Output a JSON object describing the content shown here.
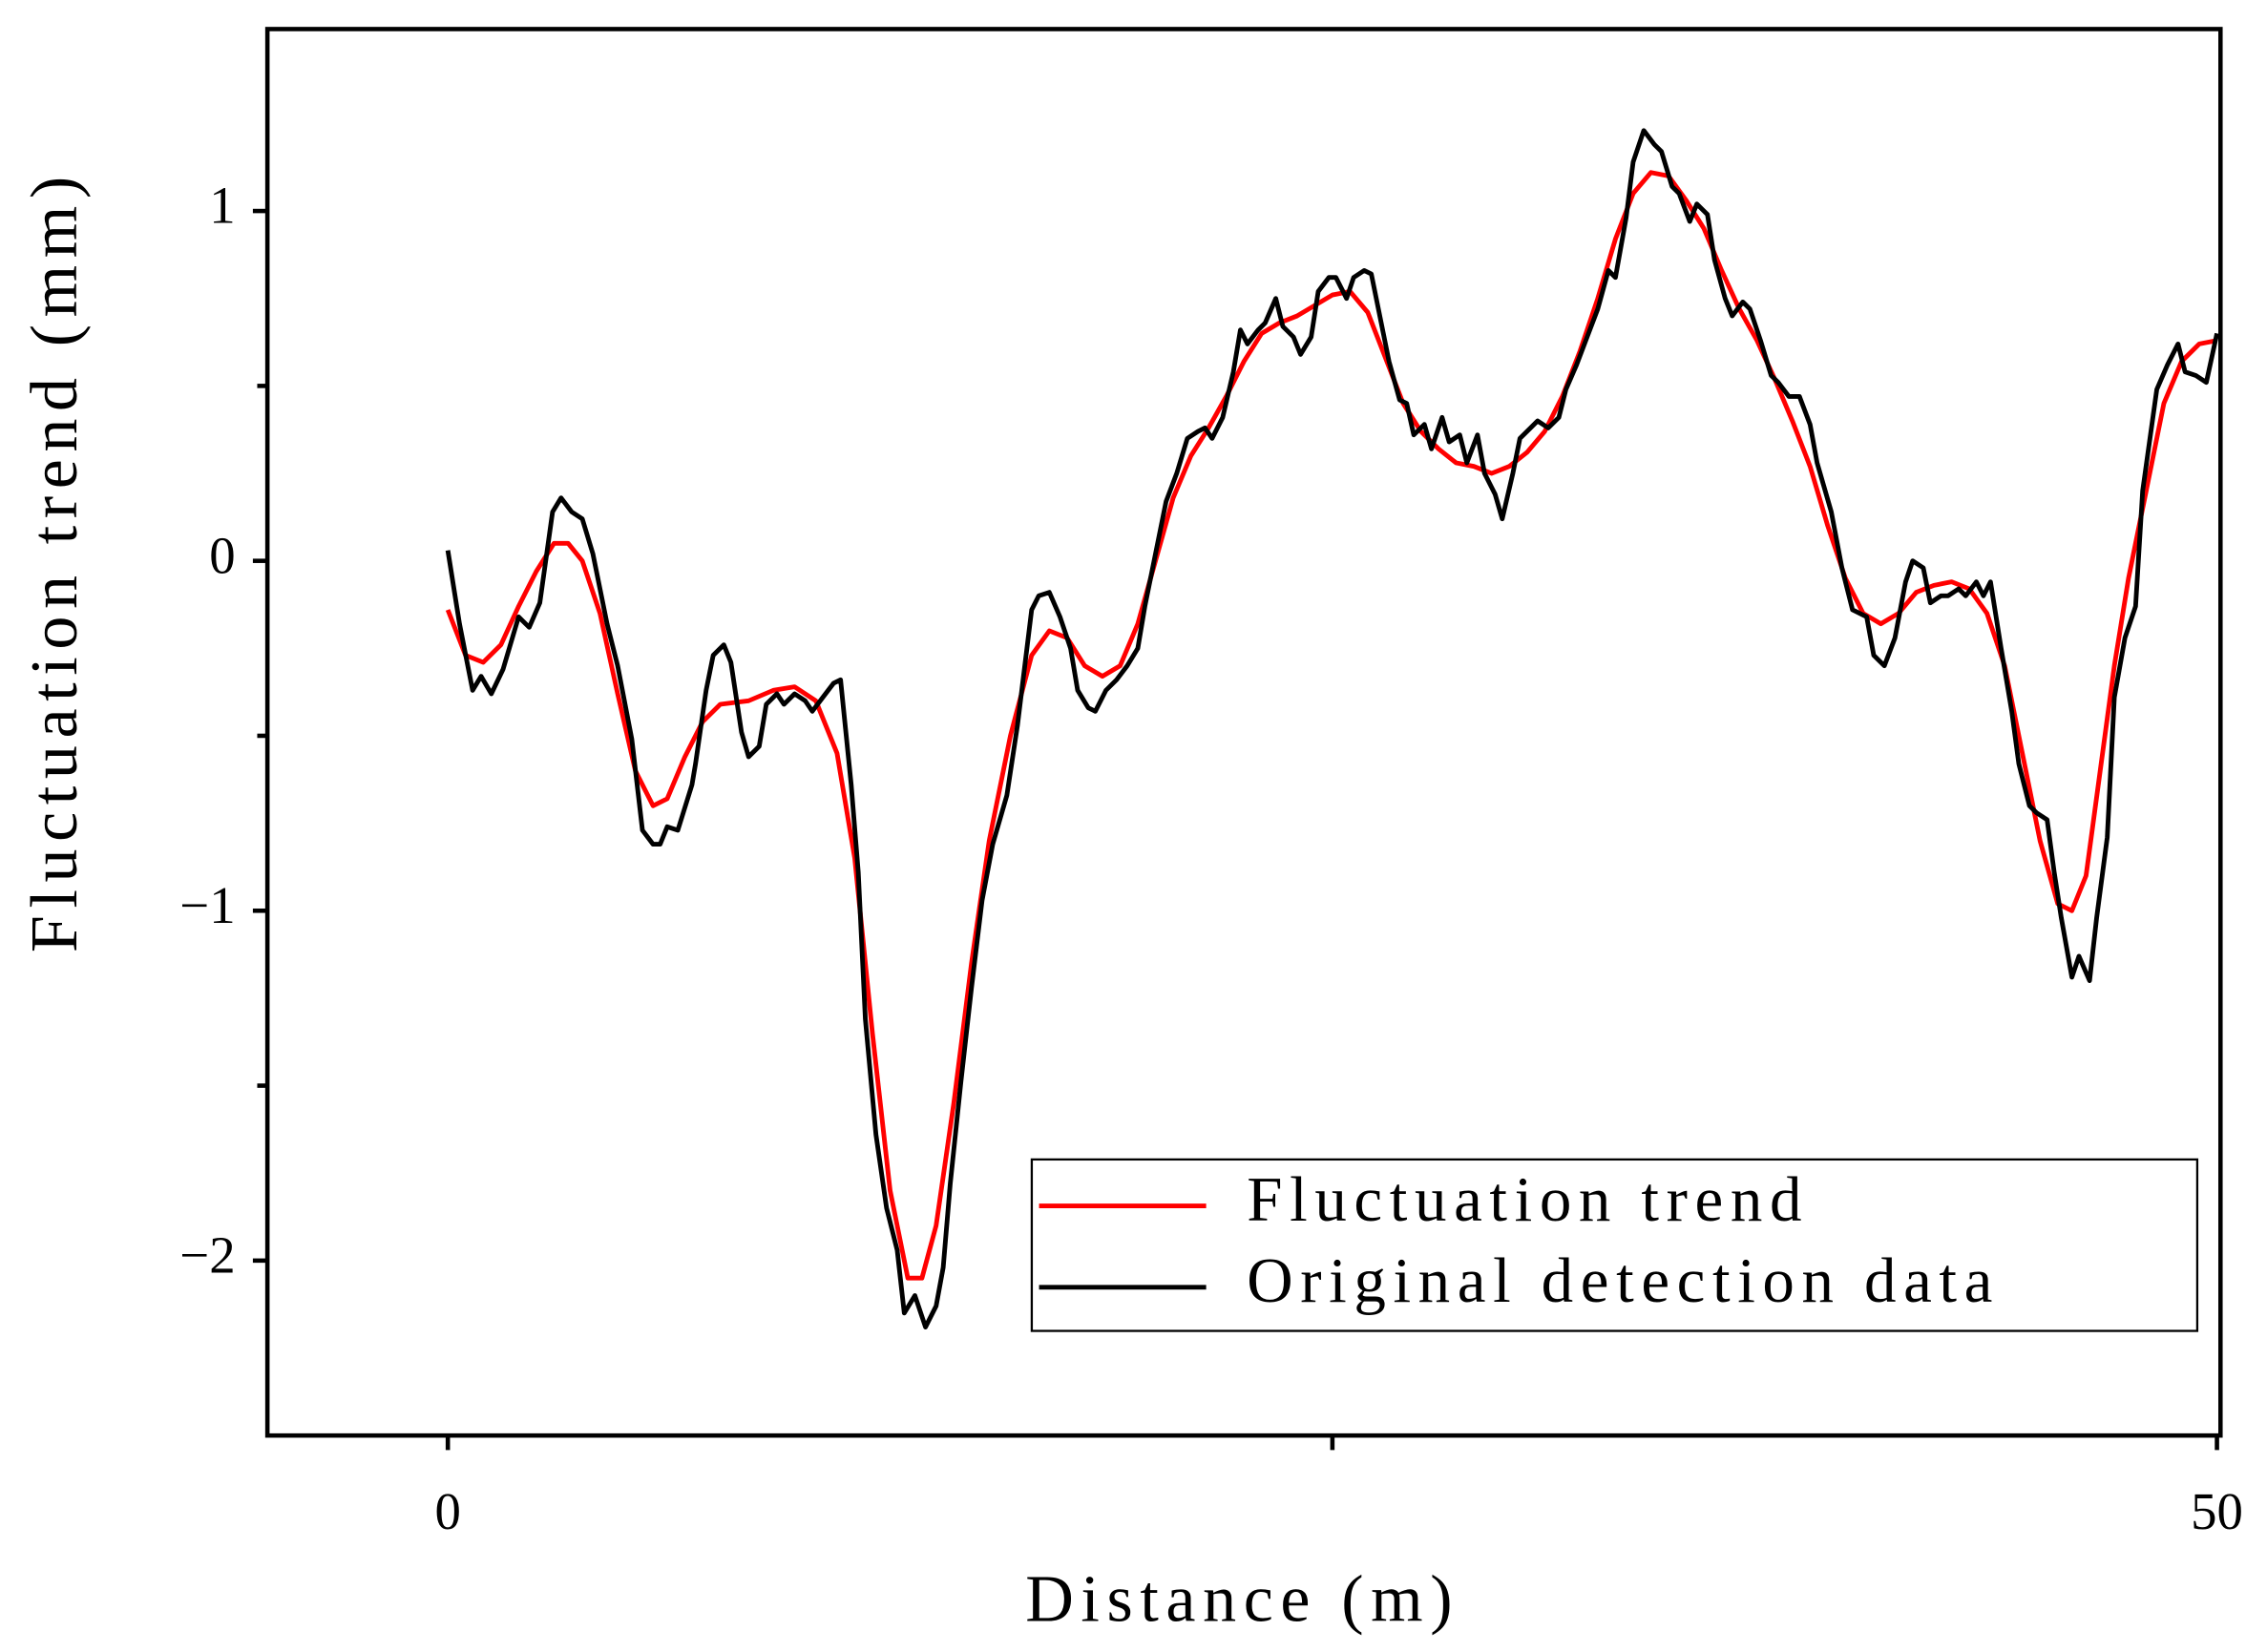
{
  "chart_data": {
    "type": "line",
    "xlabel": "Distance (m)",
    "ylabel": "Fluctuation trend (mm)",
    "xlim": [
      -5.1,
      50.1
    ],
    "xticks": [
      0,
      50
    ],
    "xminorticks": [
      25
    ],
    "ylim": [
      -2.5,
      1.52
    ],
    "yticks": [
      {
        "value": -2,
        "label": "−2"
      },
      {
        "value": -1,
        "label": "−1"
      },
      0,
      1
    ],
    "yminorticks": [
      -1.5,
      -0.5,
      0.5
    ],
    "legend": "lower right",
    "series": [
      {
        "name": "Fluctuation trend",
        "color": "#ff0000",
        "x": [
          0,
          0.5,
          1.0,
          1.5,
          2,
          2.5,
          3,
          3.4,
          3.8,
          4.3,
          4.8,
          5.3,
          5.8,
          6.2,
          6.7,
          7.2,
          7.7,
          8.5,
          9.2,
          9.8,
          10.4,
          11.0,
          11.5,
          12.0,
          12.5,
          13.0,
          13.4,
          13.8,
          14.3,
          14.8,
          15.3,
          15.9,
          16.5,
          17.0,
          17.5,
          18.0,
          18.5,
          19.0,
          19.5,
          20.0,
          20.5,
          21.0,
          21.5,
          22.0,
          22.5,
          23.0,
          23.5,
          24.0,
          24.5,
          25.0,
          25.5,
          26.0,
          26.5,
          27.0,
          27.5,
          28.0,
          28.5,
          29.0,
          29.5,
          30.0,
          30.5,
          31.0,
          31.5,
          32.0,
          32.5,
          33.0,
          33.5,
          34.0,
          34.5,
          35.0,
          35.5,
          36.0,
          36.5,
          37.0,
          37.5,
          38.0,
          38.5,
          39.0,
          39.5,
          40.0,
          40.5,
          41.0,
          41.5,
          42.0,
          42.5,
          43.0,
          43.5,
          44.0,
          44.5,
          45.0,
          45.5,
          45.9,
          46.3,
          46.7,
          47.1,
          47.5,
          48.0,
          48.5,
          49.0,
          49.5,
          50.0
        ],
        "values": [
          -0.14,
          -0.27,
          -0.29,
          -0.24,
          -0.13,
          -0.03,
          0.05,
          0.05,
          0.0,
          -0.15,
          -0.38,
          -0.6,
          -0.7,
          -0.68,
          -0.56,
          -0.46,
          -0.41,
          -0.4,
          -0.37,
          -0.36,
          -0.4,
          -0.55,
          -0.85,
          -1.35,
          -1.8,
          -2.05,
          -2.05,
          -1.9,
          -1.55,
          -1.15,
          -0.8,
          -0.5,
          -0.27,
          -0.2,
          -0.22,
          -0.3,
          -0.33,
          -0.3,
          -0.18,
          0.0,
          0.18,
          0.3,
          0.38,
          0.47,
          0.57,
          0.65,
          0.68,
          0.7,
          0.73,
          0.76,
          0.77,
          0.71,
          0.58,
          0.45,
          0.37,
          0.32,
          0.28,
          0.27,
          0.25,
          0.27,
          0.31,
          0.37,
          0.47,
          0.6,
          0.75,
          0.92,
          1.05,
          1.11,
          1.1,
          1.03,
          0.95,
          0.83,
          0.72,
          0.63,
          0.52,
          0.4,
          0.27,
          0.1,
          -0.05,
          -0.15,
          -0.18,
          -0.15,
          -0.09,
          -0.07,
          -0.06,
          -0.08,
          -0.15,
          -0.3,
          -0.55,
          -0.8,
          -0.98,
          -1.0,
          -0.9,
          -0.6,
          -0.3,
          -0.05,
          0.2,
          0.45,
          0.57,
          0.62,
          0.63
        ]
      },
      {
        "name": "Original detection data",
        "color": "#000000",
        "x": [
          0,
          0.33,
          0.7,
          0.94,
          1.23,
          1.56,
          2.0,
          2.3,
          2.6,
          2.96,
          3.2,
          3.5,
          3.8,
          4.1,
          4.5,
          4.8,
          5.2,
          5.5,
          5.8,
          6.0,
          6.2,
          6.5,
          6.9,
          7.0,
          7.3,
          7.5,
          7.8,
          8.0,
          8.3,
          8.5,
          8.8,
          9.0,
          9.3,
          9.5,
          9.8,
          10.1,
          10.3,
          10.6,
          10.9,
          11.1,
          11.4,
          11.6,
          11.8,
          12.1,
          12.4,
          12.7,
          12.9,
          13.2,
          13.5,
          13.8,
          14.0,
          14.2,
          14.5,
          14.8,
          15.1,
          15.4,
          15.8,
          16.1,
          16.5,
          16.7,
          17.0,
          17.3,
          17.6,
          17.8,
          18.1,
          18.3,
          18.6,
          18.9,
          19.2,
          19.5,
          19.7,
          20.0,
          20.3,
          20.6,
          20.9,
          21.2,
          21.4,
          21.6,
          21.9,
          22.2,
          22.4,
          22.6,
          22.9,
          23.1,
          23.4,
          23.6,
          23.9,
          24.1,
          24.4,
          24.6,
          24.9,
          25.1,
          25.4,
          25.6,
          25.9,
          26.1,
          26.4,
          26.6,
          26.9,
          27.1,
          27.3,
          27.6,
          27.8,
          28.1,
          28.3,
          28.6,
          28.8,
          29.1,
          29.3,
          29.6,
          29.8,
          30.1,
          30.3,
          30.6,
          30.8,
          31.1,
          31.4,
          31.6,
          31.9,
          32.2,
          32.5,
          32.8,
          33.0,
          33.3,
          33.5,
          33.8,
          34.1,
          34.3,
          34.6,
          34.8,
          35.1,
          35.3,
          35.6,
          35.8,
          36.1,
          36.3,
          36.6,
          36.8,
          37.1,
          37.4,
          37.6,
          37.9,
          38.2,
          38.5,
          38.7,
          39.1,
          39.4,
          39.7,
          40.1,
          40.3,
          40.6,
          40.9,
          41.2,
          41.4,
          41.7,
          41.9,
          42.2,
          42.4,
          42.7,
          42.9,
          43.2,
          43.4,
          43.6,
          43.9,
          44.2,
          44.4,
          44.7,
          44.9,
          45.2,
          45.4,
          45.6,
          45.9,
          46.1,
          46.4,
          46.6,
          46.9,
          47.1,
          47.4,
          47.7,
          47.9,
          48.3,
          48.6,
          48.9,
          49.1,
          49.4,
          49.7,
          50.0
        ],
        "values": [
          0.03,
          -0.18,
          -0.37,
          -0.33,
          -0.38,
          -0.31,
          -0.16,
          -0.19,
          -0.12,
          0.14,
          0.18,
          0.14,
          0.12,
          0.02,
          -0.18,
          -0.3,
          -0.51,
          -0.77,
          -0.81,
          -0.81,
          -0.76,
          -0.77,
          -0.64,
          -0.58,
          -0.37,
          -0.27,
          -0.24,
          -0.29,
          -0.49,
          -0.56,
          -0.53,
          -0.41,
          -0.38,
          -0.41,
          -0.38,
          -0.4,
          -0.43,
          -0.39,
          -0.35,
          -0.34,
          -0.64,
          -0.89,
          -1.31,
          -1.64,
          -1.85,
          -1.97,
          -2.15,
          -2.1,
          -2.19,
          -2.13,
          -2.02,
          -1.78,
          -1.49,
          -1.22,
          -0.97,
          -0.81,
          -0.67,
          -0.47,
          -0.14,
          -0.1,
          -0.09,
          -0.16,
          -0.25,
          -0.37,
          -0.42,
          -0.43,
          -0.37,
          -0.34,
          -0.3,
          -0.25,
          -0.13,
          0.02,
          0.17,
          0.25,
          0.35,
          0.37,
          0.38,
          0.35,
          0.41,
          0.54,
          0.66,
          0.62,
          0.66,
          0.68,
          0.75,
          0.67,
          0.64,
          0.59,
          0.64,
          0.77,
          0.81,
          0.81,
          0.75,
          0.81,
          0.83,
          0.82,
          0.67,
          0.57,
          0.46,
          0.45,
          0.36,
          0.39,
          0.32,
          0.41,
          0.34,
          0.36,
          0.28,
          0.36,
          0.25,
          0.19,
          0.12,
          0.25,
          0.35,
          0.38,
          0.4,
          0.38,
          0.41,
          0.49,
          0.56,
          0.64,
          0.72,
          0.83,
          0.81,
          0.98,
          1.14,
          1.23,
          1.19,
          1.17,
          1.07,
          1.05,
          0.97,
          1.02,
          0.99,
          0.86,
          0.75,
          0.7,
          0.74,
          0.72,
          0.63,
          0.53,
          0.51,
          0.47,
          0.47,
          0.39,
          0.28,
          0.14,
          -0.02,
          -0.14,
          -0.16,
          -0.27,
          -0.3,
          -0.22,
          -0.06,
          0.0,
          -0.02,
          -0.12,
          -0.1,
          -0.1,
          -0.08,
          -0.1,
          -0.06,
          -0.1,
          -0.06,
          -0.25,
          -0.43,
          -0.58,
          -0.7,
          -0.72,
          -0.74,
          -0.89,
          -1.02,
          -1.19,
          -1.13,
          -1.2,
          -1.02,
          -0.79,
          -0.39,
          -0.22,
          -0.13,
          0.2,
          0.49,
          0.56,
          0.62,
          0.54,
          0.53,
          0.51,
          0.65
        ]
      }
    ]
  }
}
